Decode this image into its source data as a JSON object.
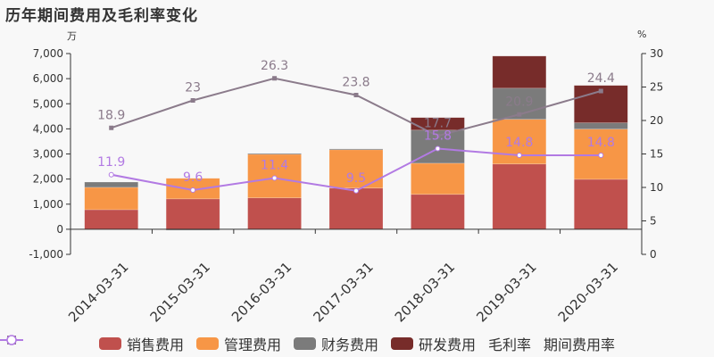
{
  "title": "历年期间费用及毛利率变化",
  "axis_units": {
    "left": "万",
    "right": "%"
  },
  "colors": {
    "sales": "#c0504d",
    "admin": "#f79646",
    "finance": "#7b7b7b",
    "rnd": "#772c2a",
    "gross_margin": "#8b7b8b",
    "expense_rate": "#b27ae3",
    "axis": "#333333",
    "background": "#f8f8f8"
  },
  "legend": [
    {
      "key": "sales",
      "label": "销售费用",
      "type": "bar"
    },
    {
      "key": "admin",
      "label": "管理费用",
      "type": "bar"
    },
    {
      "key": "finance",
      "label": "财务费用",
      "type": "bar"
    },
    {
      "key": "rnd",
      "label": "研发费用",
      "type": "bar"
    },
    {
      "key": "gross_margin",
      "label": "毛利率",
      "type": "line-square"
    },
    {
      "key": "expense_rate",
      "label": "期间费用率",
      "type": "line-circle"
    }
  ],
  "chart_data": {
    "type": "bar",
    "title": "历年期间费用及毛利率变化",
    "xlabel": "",
    "ylabel": "万",
    "y2label": "%",
    "ylim": [
      -1000,
      7000
    ],
    "y2lim": [
      0,
      30
    ],
    "yticks": [
      -1000,
      0,
      1000,
      2000,
      3000,
      4000,
      5000,
      6000,
      7000
    ],
    "ytick_labels": [
      "-1,000",
      "0",
      "1,000",
      "2,000",
      "3,000",
      "4,000",
      "5,000",
      "6,000",
      "7,000"
    ],
    "y2ticks": [
      0,
      5,
      10,
      15,
      20,
      25,
      30
    ],
    "grid": false,
    "legend_position": "bottom",
    "stacked": true,
    "categories": [
      "2014-03-31",
      "2015-03-31",
      "2016-03-31",
      "2017-03-31",
      "2018-03-31",
      "2019-03-31",
      "2020-03-31"
    ],
    "series": [
      {
        "name": "销售费用",
        "key": "sales",
        "type": "bar",
        "axis": "left",
        "values": [
          780,
          1210,
          1250,
          1640,
          1390,
          2600,
          1990
        ]
      },
      {
        "name": "管理费用",
        "key": "admin",
        "type": "bar",
        "axis": "left",
        "values": [
          890,
          820,
          1740,
          1530,
          1240,
          1780,
          2000
        ]
      },
      {
        "name": "财务费用",
        "key": "finance",
        "type": "bar",
        "axis": "left",
        "values": [
          210,
          -40,
          30,
          30,
          1320,
          1240,
          250
        ]
      },
      {
        "name": "研发费用",
        "key": "rnd",
        "type": "bar",
        "axis": "left",
        "values": [
          0,
          0,
          0,
          0,
          500,
          1280,
          1490
        ]
      },
      {
        "name": "毛利率",
        "key": "gross_margin",
        "type": "line",
        "axis": "right",
        "marker": "square",
        "values": [
          18.9,
          23,
          26.3,
          23.8,
          17.7,
          20.9,
          24.4
        ]
      },
      {
        "name": "期间费用率",
        "key": "expense_rate",
        "type": "line",
        "axis": "right",
        "marker": "circle",
        "values": [
          11.9,
          9.6,
          11.4,
          9.5,
          15.8,
          14.8,
          14.8
        ]
      }
    ]
  }
}
